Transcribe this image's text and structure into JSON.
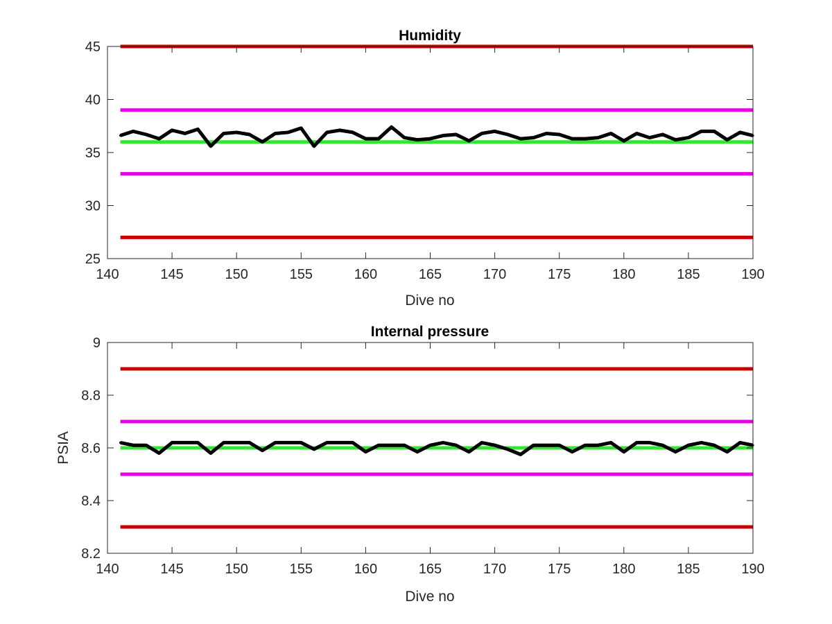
{
  "chart_data": [
    {
      "type": "line",
      "title": "Humidity",
      "xlabel": "Dive no",
      "ylabel": "",
      "xlim": [
        140,
        190
      ],
      "ylim": [
        25,
        45
      ],
      "xticks": [
        140,
        145,
        150,
        155,
        160,
        165,
        170,
        175,
        180,
        185,
        190
      ],
      "yticks": [
        25,
        30,
        35,
        40,
        45
      ],
      "grid": false,
      "legend": "none",
      "reference_lines": [
        {
          "y": 45,
          "x_range": [
            141,
            190
          ],
          "color": "#cc0000"
        },
        {
          "y": 39,
          "x_range": [
            141,
            190
          ],
          "color": "#e600e6"
        },
        {
          "y": 36,
          "x_range": [
            141,
            190
          ],
          "color": "#33e633"
        },
        {
          "y": 33,
          "x_range": [
            141,
            190
          ],
          "color": "#e600e6"
        },
        {
          "y": 27,
          "x_range": [
            141,
            190
          ],
          "color": "#cc0000"
        }
      ],
      "series": [
        {
          "color": "#000000",
          "x": [
            141,
            142,
            143,
            144,
            145,
            146,
            147,
            148,
            149,
            150,
            151,
            152,
            153,
            154,
            155,
            156,
            157,
            158,
            159,
            160,
            161,
            162,
            163,
            164,
            165,
            166,
            167,
            168,
            169,
            170,
            171,
            172,
            173,
            174,
            175,
            176,
            177,
            178,
            179,
            180,
            181,
            182,
            183,
            184,
            185,
            186,
            187,
            188,
            189,
            190
          ],
          "values": [
            36.6,
            37.0,
            36.7,
            36.3,
            37.1,
            36.8,
            37.2,
            35.6,
            36.8,
            36.9,
            36.7,
            36.0,
            36.8,
            36.9,
            37.3,
            35.6,
            36.9,
            37.1,
            36.9,
            36.3,
            36.3,
            37.4,
            36.4,
            36.2,
            36.3,
            36.6,
            36.7,
            36.1,
            36.8,
            37.0,
            36.7,
            36.3,
            36.4,
            36.8,
            36.7,
            36.3,
            36.3,
            36.4,
            36.8,
            36.1,
            36.8,
            36.4,
            36.7,
            36.2,
            36.4,
            37.0,
            37.0,
            36.2,
            36.9,
            36.6
          ]
        }
      ]
    },
    {
      "type": "line",
      "title": "Internal pressure",
      "xlabel": "Dive no",
      "ylabel": "PSIA",
      "xlim": [
        140,
        190
      ],
      "ylim": [
        8.2,
        9.0
      ],
      "xticks": [
        140,
        145,
        150,
        155,
        160,
        165,
        170,
        175,
        180,
        185,
        190
      ],
      "yticks": [
        8.2,
        8.4,
        8.6,
        8.8,
        9
      ],
      "ytick_labels": [
        "8.2",
        "8.4",
        "8.6",
        "8.8",
        "9"
      ],
      "grid": false,
      "legend": "none",
      "reference_lines": [
        {
          "y": 8.9,
          "x_range": [
            141,
            190
          ],
          "color": "#cc0000"
        },
        {
          "y": 8.7,
          "x_range": [
            141,
            190
          ],
          "color": "#e600e6"
        },
        {
          "y": 8.6,
          "x_range": [
            141,
            190
          ],
          "color": "#33e633"
        },
        {
          "y": 8.5,
          "x_range": [
            141,
            190
          ],
          "color": "#e600e6"
        },
        {
          "y": 8.3,
          "x_range": [
            141,
            190
          ],
          "color": "#cc0000"
        }
      ],
      "series": [
        {
          "color": "#000000",
          "x": [
            141,
            142,
            143,
            144,
            145,
            146,
            147,
            148,
            149,
            150,
            151,
            152,
            153,
            154,
            155,
            156,
            157,
            158,
            159,
            160,
            161,
            162,
            163,
            164,
            165,
            166,
            167,
            168,
            169,
            170,
            171,
            172,
            173,
            174,
            175,
            176,
            177,
            178,
            179,
            180,
            181,
            182,
            183,
            184,
            185,
            186,
            187,
            188,
            189,
            190
          ],
          "values": [
            8.62,
            8.61,
            8.61,
            8.58,
            8.62,
            8.62,
            8.62,
            8.58,
            8.62,
            8.62,
            8.62,
            8.59,
            8.62,
            8.62,
            8.62,
            8.595,
            8.62,
            8.62,
            8.62,
            8.585,
            8.61,
            8.61,
            8.61,
            8.585,
            8.61,
            8.62,
            8.61,
            8.585,
            8.62,
            8.61,
            8.595,
            8.575,
            8.61,
            8.61,
            8.61,
            8.585,
            8.61,
            8.61,
            8.62,
            8.585,
            8.62,
            8.62,
            8.61,
            8.585,
            8.61,
            8.62,
            8.61,
            8.585,
            8.62,
            8.61
          ]
        }
      ]
    }
  ]
}
